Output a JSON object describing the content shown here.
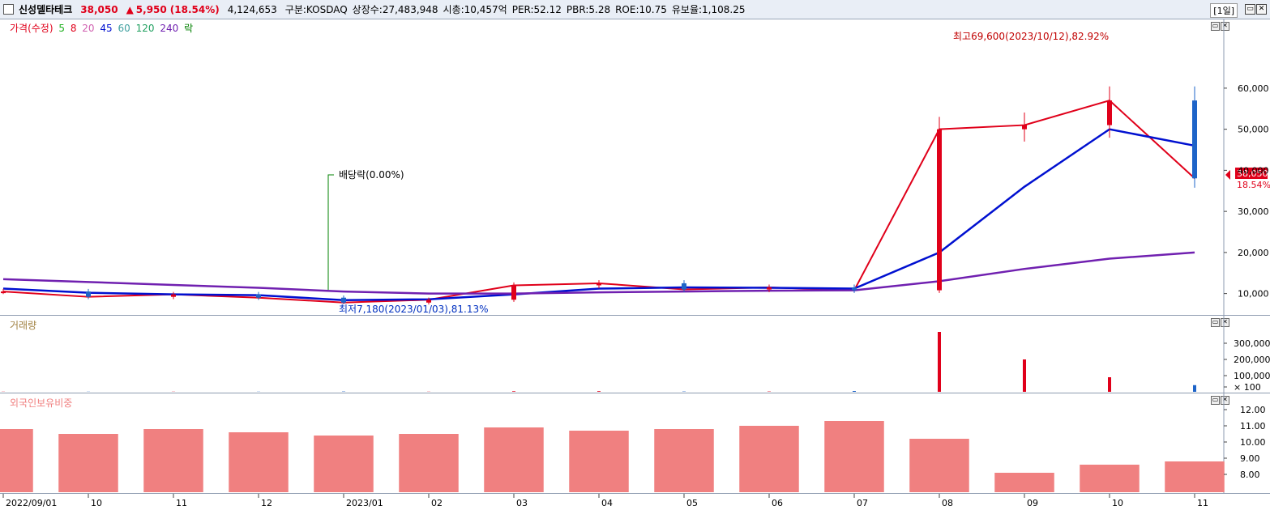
{
  "header": {
    "stock_name": "신성델타테크",
    "price": "38,050",
    "change_arrow": "▲",
    "change": "5,950",
    "change_pct": "(18.54%)",
    "volume": "4,124,653",
    "market": "구분:KOSDAQ",
    "shares": "상장수:27,483,948",
    "market_cap": "시총:10,457억",
    "per": "PER:52.12",
    "pbr": "PBR:5.28",
    "roe": "ROE:10.75",
    "reserve": "유보율:1,108.25",
    "period": "[1일]"
  },
  "price_panel": {
    "legend": {
      "label": "가격(수정)",
      "ma5": "5",
      "ma8": "8",
      "ma20": "20",
      "ma45": "45",
      "ma60": "60",
      "ma120": "120",
      "ma240": "240",
      "drop": "락"
    },
    "annotations": {
      "high": "최고69,600(2023/10/12),82.92%",
      "low": "최저7,180(2023/01/03),81.13%",
      "dividend": "배당락(0.00%)",
      "last_price": "38,050",
      "last_pct": "18.54%"
    },
    "y_ticks": [
      "60,000",
      "50,000",
      "40,000",
      "30,000",
      "20,000",
      "10,000"
    ]
  },
  "volume_panel": {
    "legend": "거래량",
    "y_ticks": [
      "300,000",
      "200,000",
      "100,000",
      "× 100"
    ]
  },
  "foreign_panel": {
    "legend": "외국인보유비중",
    "y_ticks": [
      "12.00",
      "11.00",
      "10.00",
      "9.00",
      "8.00"
    ]
  },
  "x_axis": {
    "labels": [
      "2022/09/01",
      "10",
      "11",
      "12",
      "2023/01",
      "02",
      "03",
      "04",
      "05",
      "06",
      "07",
      "08",
      "09",
      "10",
      "11"
    ]
  },
  "colors": {
    "up": "#e0001a",
    "down": "#1e64c8",
    "ma5": "#20b020",
    "ma20": "#d060b0",
    "ma45": "#0010d0",
    "ma60": "#40a0a0",
    "ma120": "#20a060",
    "ma240": "#7020b0",
    "foreign": "#f08080"
  },
  "chart_data": [
    {
      "type": "line",
      "title": "",
      "x": [
        "2022/09",
        "2022/10",
        "2022/11",
        "2022/12",
        "2023/01",
        "2023/02",
        "2023/03",
        "2023/04",
        "2023/05",
        "2023/06",
        "2023/07",
        "2023/08",
        "2023/09",
        "2023/10",
        "2023/11"
      ],
      "series": [
        {
          "name": "가격(수정)",
          "values": [
            10500,
            9200,
            9800,
            9000,
            7800,
            8500,
            12000,
            12500,
            11000,
            11500,
            10800,
            50000,
            51000,
            57000,
            38050
          ]
        },
        {
          "name": "45",
          "values": [
            11200,
            10200,
            9800,
            9600,
            8400,
            8600,
            9800,
            11200,
            11500,
            11400,
            11200,
            20000,
            36000,
            50000,
            46000
          ]
        },
        {
          "name": "240",
          "values": [
            13500,
            12800,
            12100,
            11400,
            10500,
            10000,
            10000,
            10300,
            10500,
            10700,
            10800,
            13000,
            16000,
            18500,
            20000
          ]
        }
      ],
      "ylim": [
        5000,
        72000
      ]
    },
    {
      "type": "bar",
      "title": "",
      "series": [
        {
          "name": "거래량",
          "values": [
            1000,
            1000,
            1000,
            1000,
            2000,
            1000,
            3500,
            4000,
            2000,
            2000,
            5000,
            370000,
            200000,
            90000,
            41246
          ]
        }
      ],
      "ylim": [
        0,
        400000
      ]
    },
    {
      "type": "bar",
      "title": "",
      "series": [
        {
          "name": "외국인보유비중",
          "values": [
            10.8,
            10.5,
            10.8,
            10.6,
            10.4,
            10.5,
            10.9,
            10.7,
            10.8,
            11.0,
            11.3,
            10.2,
            8.1,
            8.6,
            8.8
          ]
        }
      ],
      "ylim": [
        7,
        12.5
      ]
    }
  ]
}
